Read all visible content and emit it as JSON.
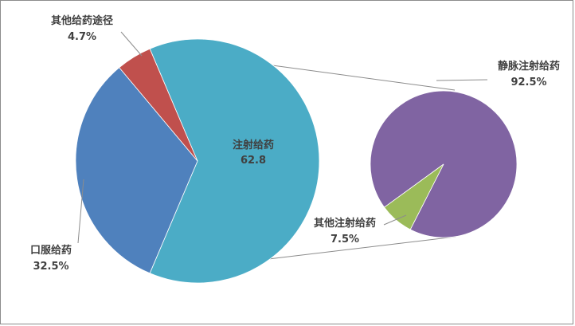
{
  "chart_data": {
    "type": "pie",
    "title": "",
    "main_pie": {
      "slices": [
        {
          "label": "注射给药",
          "value_text": "62.8",
          "value": 62.8,
          "color": "#4bacc6"
        },
        {
          "label": "口服给药",
          "value_text": "32.5%",
          "value": 32.5,
          "color": "#4f81bd"
        },
        {
          "label": "其他给药途径",
          "value_text": "4.7%",
          "value": 4.7,
          "color": "#c0504d"
        }
      ]
    },
    "secondary_pie": {
      "exploded_from": "注射给药",
      "slices": [
        {
          "label": "静脉注射给药",
          "value_text": "92.5%",
          "value": 92.5,
          "color": "#8064a2"
        },
        {
          "label": "其他注射给药",
          "value_text": "7.5%",
          "value": 7.5,
          "color": "#9bbb59"
        }
      ]
    }
  }
}
